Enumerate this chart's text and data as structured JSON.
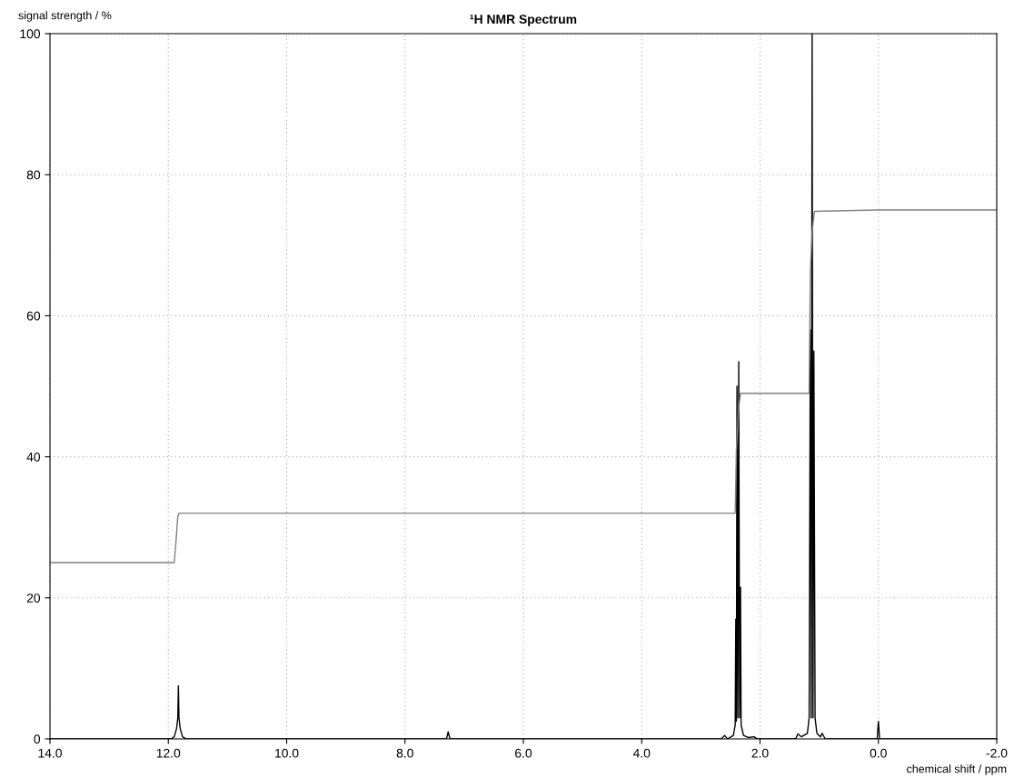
{
  "chart_data": {
    "type": "line",
    "title": "¹H NMR Spectrum",
    "xlabel": "chemical shift / ppm",
    "ylabel": "signal strength / %",
    "xlim": [
      14.0,
      -2.0
    ],
    "ylim": [
      0,
      100
    ],
    "xticks": [
      {
        "value": 14,
        "label": "14.0"
      },
      {
        "value": 12,
        "label": "12.0"
      },
      {
        "value": 10,
        "label": "10.0"
      },
      {
        "value": 8,
        "label": "8.0"
      },
      {
        "value": 6,
        "label": "6.0"
      },
      {
        "value": 4,
        "label": "4.0"
      },
      {
        "value": 2,
        "label": "2.0"
      },
      {
        "value": 0,
        "label": "0.0"
      },
      {
        "value": -2,
        "label": "-2.0"
      }
    ],
    "yticks": [
      0,
      20,
      40,
      60,
      80,
      100
    ],
    "grid": true,
    "line_style": "solid",
    "marker": "none",
    "series": [
      {
        "color": "#000000",
        "x": [
          14.0,
          11.95,
          11.9,
          11.86,
          11.84,
          11.83,
          11.82,
          11.8,
          11.76,
          11.7,
          7.3,
          7.27,
          7.24,
          2.65,
          2.6,
          2.55,
          2.45,
          2.42,
          2.41,
          2.4,
          2.39,
          2.375,
          2.36,
          2.345,
          2.33,
          2.32,
          2.28,
          2.2,
          2.1,
          2.05,
          1.4,
          1.36,
          1.3,
          1.2,
          1.17,
          1.15,
          1.135,
          1.12,
          1.105,
          1.09,
          1.07,
          1.04,
          0.98,
          0.95,
          0.9,
          0.02,
          0.0,
          -0.02,
          -2.0
        ],
        "values": [
          0,
          0,
          0.3,
          1.5,
          3,
          7.5,
          3,
          1.5,
          0.3,
          0,
          0,
          1,
          0,
          0,
          0.5,
          0,
          0.5,
          2,
          17,
          2.5,
          50,
          3,
          53.5,
          3,
          21.5,
          2,
          0.5,
          0.2,
          0.3,
          0,
          0,
          0.7,
          0.3,
          0.8,
          3,
          58,
          3,
          100,
          3,
          55,
          3,
          0.8,
          0.3,
          0.8,
          0,
          0,
          2.5,
          0,
          0
        ]
      },
      {
        "color": "#808080",
        "x": [
          14.0,
          11.9,
          11.87,
          11.84,
          11.82,
          2.42,
          2.4,
          2.36,
          2.33,
          1.17,
          1.15,
          1.12,
          1.08,
          0.0,
          -2.0
        ],
        "values": [
          25,
          25,
          28,
          31.5,
          32,
          32,
          41,
          47,
          49,
          49,
          66,
          72,
          74.8,
          75,
          75
        ]
      }
    ]
  }
}
